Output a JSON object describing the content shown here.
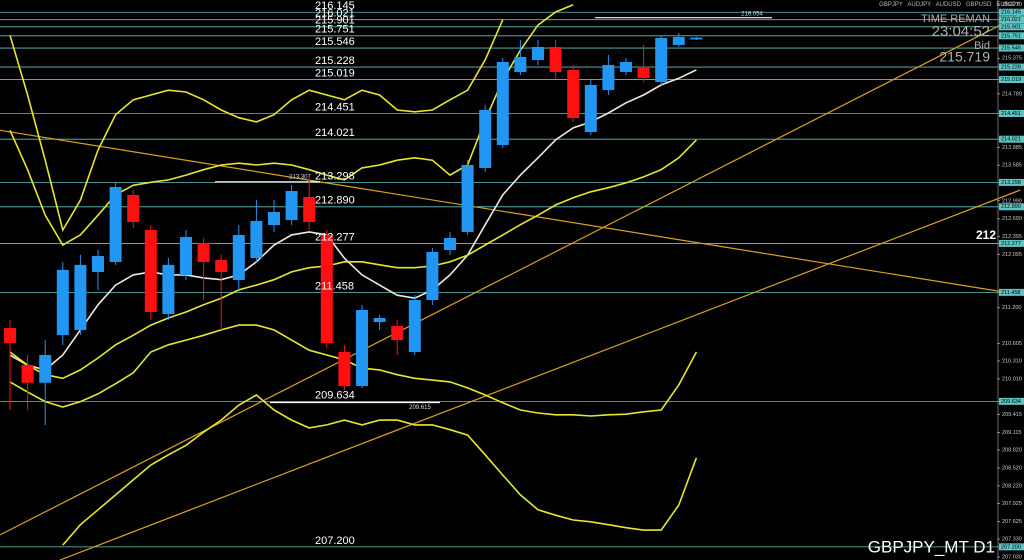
{
  "chart_data": {
    "type": "candlestick",
    "symbols": [
      "GBPJPY",
      "AUDJPY",
      "AUDUSD",
      "GBPUSD",
      "EURJPY"
    ],
    "time_remain_label": "TIME REMAN",
    "time_remain": "23:04:52",
    "bid_label": "Bid",
    "bid": 215.719,
    "side_label": "212",
    "footer": "GBPJPY_MT D1",
    "ylim": [
      206.98,
      216.35
    ],
    "yticks": [
      {
        "value": 216.27,
        "label": "216.270"
      },
      215.375,
      {
        "value": 214.78,
        "label": "214.780"
      },
      213.885,
      213.585,
      {
        "value": 212.99,
        "label": "212.990"
      },
      {
        "value": 212.69,
        "label": "212.690"
      },
      212.395,
      212.095,
      {
        "value": 211.2,
        "label": "211.200"
      },
      210.605,
      {
        "value": 210.31,
        "label": "210.310"
      },
      {
        "value": 210.01,
        "label": "210.010"
      },
      209.415,
      209.115,
      {
        "value": 208.82,
        "label": "208.820"
      },
      {
        "value": 208.52,
        "label": "208.520"
      },
      {
        "value": 208.22,
        "label": "208.220"
      },
      207.925,
      207.625,
      {
        "value": 207.33,
        "label": "207.330"
      },
      {
        "value": 207.03,
        "label": "207.030"
      }
    ],
    "up_color": "#2196f3",
    "down_color": "#ff1010",
    "open": [
      210.862,
      210.243,
      209.946,
      210.745,
      210.828,
      211.799,
      211.966,
      213.087,
      212.502,
      211.096,
      211.749,
      212.284,
      212.0,
      211.665,
      212.033,
      212.585,
      212.669,
      213.054,
      212.418,
      210.46,
      209.891,
      210.962,
      210.895,
      210.46,
      211.33,
      212.167,
      212.468,
      213.539,
      213.924,
      215.145,
      215.346,
      215.564,
      215.179,
      214.141,
      214.844,
      215.145,
      215.229,
      214.978,
      215.597,
      215.69
    ],
    "high": [
      210.996,
      210.41,
      210.661,
      211.968,
      212.085,
      212.169,
      213.288,
      213.171,
      212.585,
      212.035,
      212.502,
      212.368,
      212.085,
      212.585,
      213.004,
      213.004,
      213.255,
      213.338,
      212.502,
      210.577,
      211.247,
      211.079,
      210.996,
      211.414,
      212.2,
      212.468,
      213.673,
      214.593,
      215.38,
      215.681,
      215.681,
      215.681,
      215.262,
      215.011,
      215.43,
      215.38,
      215.597,
      215.764,
      215.798,
      215.73
    ],
    "low": [
      209.49,
      209.49,
      209.239,
      210.577,
      210.745,
      211.498,
      211.918,
      212.534,
      210.996,
      210.996,
      211.665,
      211.33,
      210.828,
      211.498,
      211.966,
      212.468,
      212.585,
      212.502,
      210.527,
      209.825,
      209.858,
      210.828,
      210.41,
      210.41,
      211.247,
      212.083,
      212.418,
      213.472,
      213.874,
      215.095,
      215.262,
      215.045,
      214.309,
      214.091,
      214.76,
      215.095,
      214.978,
      214.928,
      215.564,
      215.68
    ],
    "close": [
      210.611,
      209.946,
      210.41,
      211.834,
      211.918,
      212.067,
      213.221,
      212.635,
      211.13,
      211.918,
      212.384,
      211.966,
      211.799,
      212.418,
      212.652,
      212.803,
      213.154,
      212.635,
      210.611,
      209.891,
      211.163,
      211.029,
      210.661,
      211.33,
      212.133,
      212.368,
      213.589,
      214.51,
      215.313,
      215.396,
      215.564,
      215.145,
      214.376,
      214.928,
      215.262,
      215.313,
      215.045,
      215.714,
      215.731,
      215.72
    ],
    "indicators": [
      {
        "color": "#f2e6dc",
        "values": [
          210.41,
          210.24,
          210.16,
          210.41,
          210.83,
          211.25,
          211.58,
          211.75,
          211.8,
          211.75,
          211.75,
          211.7,
          211.67,
          211.75,
          211.97,
          212.25,
          212.42,
          212.47,
          212.42,
          212.03,
          211.75,
          211.58,
          211.41,
          211.36,
          211.5,
          211.75,
          212.08,
          212.59,
          213.09,
          213.42,
          213.71,
          214.01,
          214.21,
          214.31,
          214.46,
          214.63,
          214.76,
          214.93,
          215.04,
          215.18
        ]
      },
      {
        "color": "#e6e632",
        "values": [
          215.76,
          214.76,
          213.67,
          212.5,
          213.0,
          213.84,
          214.43,
          214.68,
          214.76,
          214.84,
          214.81,
          214.68,
          214.51,
          214.38,
          214.31,
          214.43,
          214.68,
          214.84,
          214.76,
          214.68,
          214.84,
          214.76,
          214.51,
          214.48,
          214.51,
          214.68,
          214.84,
          215.35,
          216.02,
          null,
          null,
          null,
          null,
          null,
          null,
          null,
          null,
          null,
          null,
          null
        ]
      },
      {
        "color": "#e6e632",
        "values": [
          214.17,
          213.51,
          212.75,
          212.25,
          212.42,
          212.75,
          213.09,
          213.25,
          213.3,
          213.34,
          213.42,
          213.51,
          213.59,
          213.62,
          213.59,
          213.62,
          213.59,
          213.51,
          213.42,
          213.34,
          213.54,
          213.59,
          213.67,
          213.71,
          213.67,
          213.42,
          213.59,
          214.34,
          215.01,
          215.51,
          215.93,
          216.15,
          216.27,
          null,
          null,
          null,
          null,
          null,
          null,
          null
        ]
      },
      {
        "color": "#e6e632",
        "values": [
          210.46,
          210.24,
          210.08,
          210.02,
          210.16,
          210.36,
          210.58,
          210.74,
          210.91,
          211.03,
          211.13,
          211.25,
          211.36,
          211.5,
          211.58,
          211.67,
          211.8,
          211.87,
          211.9,
          211.97,
          211.97,
          211.92,
          211.87,
          211.87,
          211.9,
          211.97,
          212.08,
          212.25,
          212.42,
          212.59,
          212.75,
          212.92,
          213.04,
          213.14,
          213.21,
          213.29,
          213.39,
          213.51,
          213.71,
          214.01
        ]
      },
      {
        "color": "#e6e632",
        "values": [
          209.96,
          209.79,
          209.63,
          209.54,
          209.63,
          209.76,
          209.93,
          210.11,
          210.46,
          210.58,
          210.66,
          210.74,
          210.83,
          210.91,
          210.91,
          210.83,
          210.66,
          210.49,
          210.41,
          210.33,
          210.19,
          210.16,
          210.08,
          210.02,
          209.99,
          209.96,
          209.86,
          209.74,
          209.61,
          209.49,
          209.44,
          209.41,
          209.41,
          209.39,
          209.41,
          209.42,
          209.46,
          209.49,
          209.91,
          210.46
        ]
      },
      {
        "color": "#e6e632",
        "values": [
          null,
          null,
          null,
          207.23,
          207.57,
          207.82,
          208.07,
          208.32,
          208.57,
          208.74,
          208.9,
          209.12,
          209.32,
          209.57,
          209.74,
          209.49,
          209.32,
          209.19,
          209.24,
          209.32,
          209.24,
          209.32,
          209.32,
          209.24,
          209.24,
          209.16,
          209.07,
          208.74,
          208.4,
          208.07,
          207.82,
          207.73,
          207.65,
          207.62,
          207.57,
          207.52,
          207.48,
          207.48,
          207.9,
          208.69
        ]
      }
    ],
    "trendlines": [
      {
        "color": "#d9a21e",
        "x": [
          -0.57,
          57.6
        ],
        "y": [
          214.17,
          211.41
        ]
      },
      {
        "color": "#d9a21e",
        "x": [
          -0.57,
          57.4
        ],
        "y": [
          207.4,
          216.1
        ]
      },
      {
        "color": "#d9a21e",
        "x": [
          2.84,
          57.4
        ],
        "y": [
          206.98,
          213.17
        ]
      }
    ],
    "level_color": "#5fc4c4",
    "levels": [
      216.145,
      216.021,
      215.901,
      215.751,
      215.546,
      215.228,
      215.019,
      214.451,
      214.021,
      213.298,
      {
        "value": 212.89,
        "label": "212.890"
      },
      212.277,
      211.458,
      209.634,
      {
        "value": 207.2,
        "label": "207.200"
      }
    ],
    "marks": [
      213.307,
      209.615,
      216.054
    ]
  }
}
